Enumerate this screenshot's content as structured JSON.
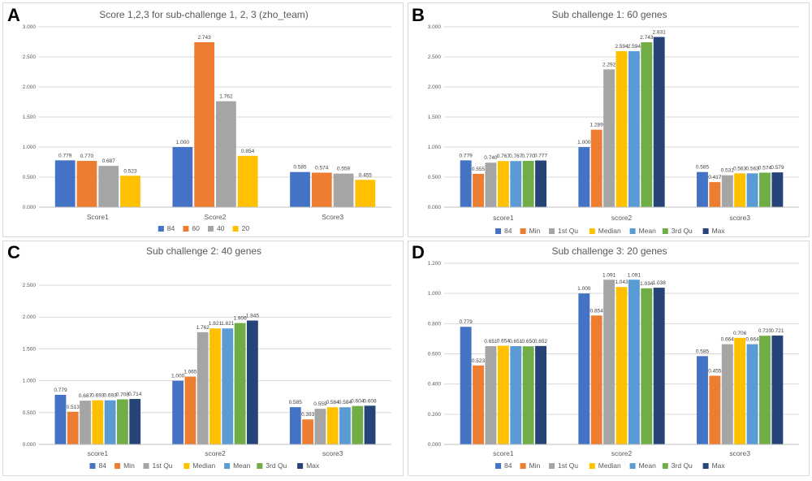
{
  "series_colors": [
    "#4472C4",
    "#ED7D31",
    "#A5A5A5",
    "#FFC000",
    "#5B9BD5",
    "#70AD47",
    "#264478"
  ],
  "chart_data": [
    {
      "panel_label": "A",
      "type": "bar",
      "title": "Score 1,2,3 for sub-challenge 1, 2, 3 (zho_team)",
      "categories": [
        "Score1",
        "Score2",
        "Score3"
      ],
      "series": [
        {
          "name": "84",
          "values": [
            0.779,
            1.0,
            0.585
          ]
        },
        {
          "name": "60",
          "values": [
            0.77,
            2.743,
            0.574
          ]
        },
        {
          "name": "40",
          "values": [
            0.687,
            1.762,
            0.559
          ]
        },
        {
          "name": "20",
          "values": [
            0.523,
            0.854,
            0.455
          ]
        }
      ],
      "ylim": [
        0,
        3
      ],
      "yticks": [
        "0.000",
        "0.500",
        "1.000",
        "1.500",
        "2.000",
        "2.500",
        "3.000"
      ],
      "ytick_values": [
        0,
        0.5,
        1.0,
        1.5,
        2.0,
        2.5,
        3.0
      ],
      "grid": true,
      "legend": "bottom"
    },
    {
      "panel_label": "B",
      "type": "bar",
      "title": "Sub challenge 1: 60 genes",
      "categories": [
        "score1",
        "score2",
        "score3"
      ],
      "series": [
        {
          "name": "84",
          "values": [
            0.779,
            1.0,
            0.585
          ]
        },
        {
          "name": "Min",
          "values": [
            0.555,
            1.289,
            0.417
          ]
        },
        {
          "name": "1st Qu",
          "values": [
            0.74,
            2.292,
            0.531
          ]
        },
        {
          "name": "Median",
          "values": [
            0.767,
            2.594,
            0.563
          ]
        },
        {
          "name": "Mean",
          "values": [
            0.767,
            2.594,
            0.563
          ]
        },
        {
          "name": "3rd Qu",
          "values": [
            0.77,
            2.743,
            0.574
          ]
        },
        {
          "name": "Max",
          "values": [
            0.777,
            2.831,
            0.579
          ]
        }
      ],
      "ylim": [
        0,
        3
      ],
      "yticks": [
        "0.000",
        "0.500",
        "1.000",
        "1.500",
        "2.000",
        "2.500",
        "3.000"
      ],
      "ytick_values": [
        0,
        0.5,
        1.0,
        1.5,
        2.0,
        2.5,
        3.0
      ],
      "grid": true,
      "legend": "bottom"
    },
    {
      "panel_label": "C",
      "type": "bar",
      "title": "Sub challenge 2: 40 genes",
      "categories": [
        "score1",
        "score2",
        "score3"
      ],
      "series": [
        {
          "name": "84",
          "values": [
            0.779,
            1.0,
            0.585
          ]
        },
        {
          "name": "Min",
          "values": [
            0.513,
            1.065,
            0.393
          ]
        },
        {
          "name": "1st Qu",
          "values": [
            0.687,
            1.762,
            0.559
          ]
        },
        {
          "name": "Median",
          "values": [
            0.693,
            1.821,
            0.584
          ]
        },
        {
          "name": "Mean",
          "values": [
            0.693,
            1.821,
            0.584
          ]
        },
        {
          "name": "3rd Qu",
          "values": [
            0.708,
            1.906,
            0.604
          ]
        },
        {
          "name": "Max",
          "values": [
            0.714,
            1.945,
            0.608
          ]
        }
      ],
      "ylim": [
        0,
        2.5
      ],
      "yticks": [
        "0.000",
        "0.500",
        "1.000",
        "1.500",
        "2.000",
        "2.500"
      ],
      "ytick_values": [
        0,
        0.5,
        1.0,
        1.5,
        2.0,
        2.5
      ],
      "grid": true,
      "legend": "bottom"
    },
    {
      "panel_label": "D",
      "type": "bar",
      "title": "Sub challenge 3: 20 genes",
      "categories": [
        "score1",
        "score2",
        "score3"
      ],
      "series": [
        {
          "name": "84",
          "values": [
            0.779,
            1.0,
            0.585
          ]
        },
        {
          "name": "Min",
          "values": [
            0.523,
            0.854,
            0.455
          ]
        },
        {
          "name": "1st Qu",
          "values": [
            0.651,
            1.091,
            0.664
          ]
        },
        {
          "name": "Median",
          "values": [
            0.654,
            1.043,
            0.706
          ]
        },
        {
          "name": "Mean",
          "values": [
            0.651,
            1.091,
            0.664
          ]
        },
        {
          "name": "3rd Qu",
          "values": [
            0.65,
            1.034,
            0.72
          ]
        },
        {
          "name": "Max",
          "values": [
            0.652,
            1.038,
            0.721
          ]
        }
      ],
      "ylim": [
        0,
        1.2
      ],
      "yticks": [
        "0.000",
        "0.200",
        "0.400",
        "0.600",
        "0.800",
        "1.000",
        "1.200"
      ],
      "ytick_values": [
        0,
        0.2,
        0.4,
        0.6,
        0.8,
        1.0,
        1.2
      ],
      "grid": true,
      "legend": "bottom"
    }
  ]
}
